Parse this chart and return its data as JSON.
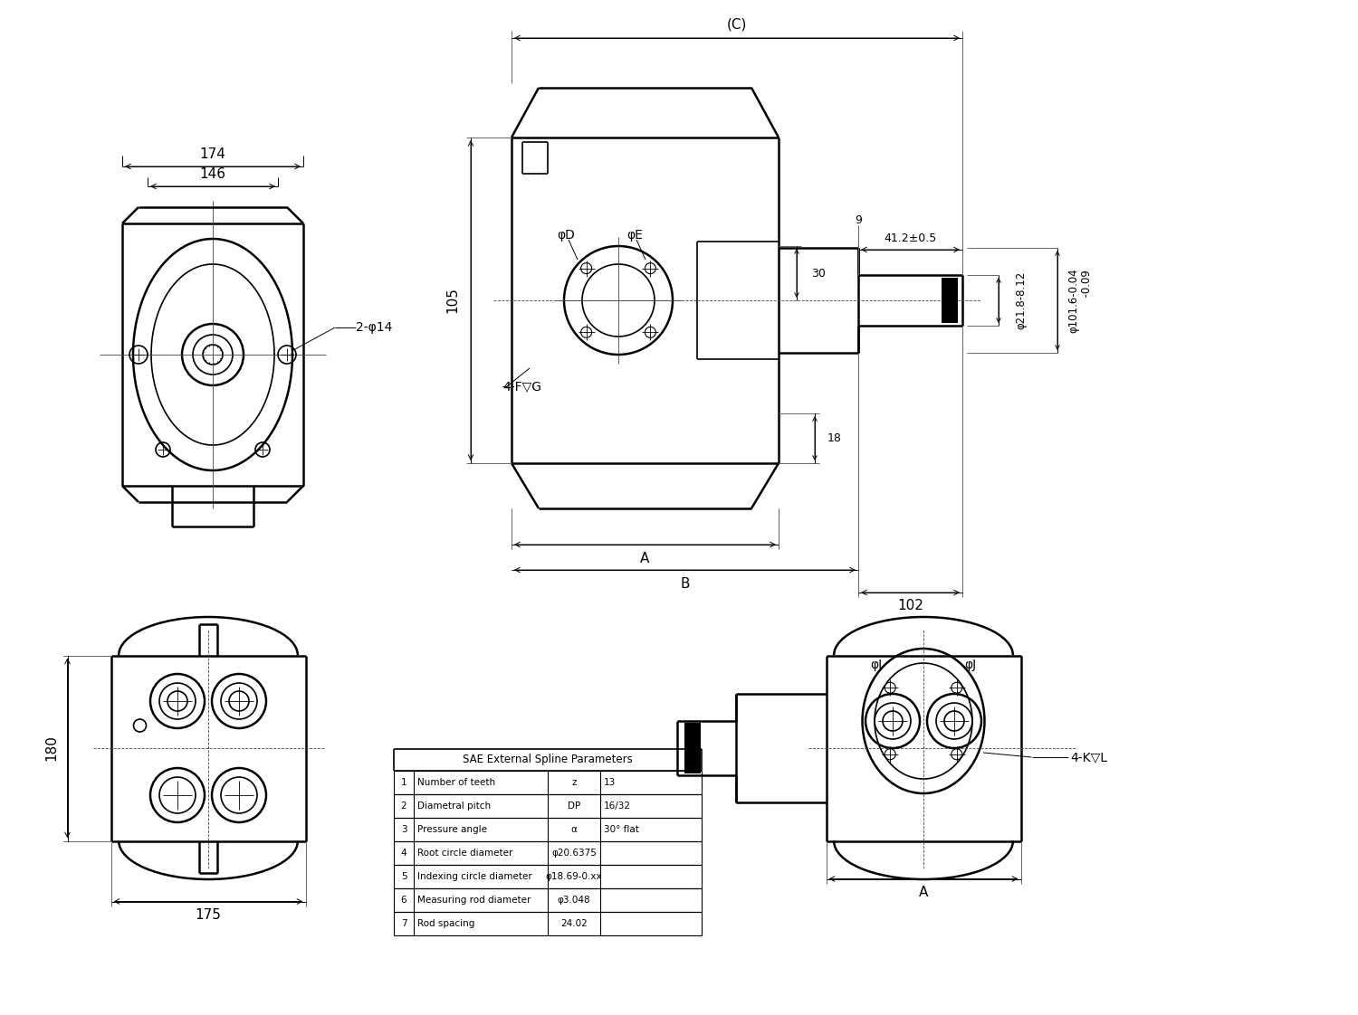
{
  "bg_color": "#ffffff",
  "line_color": "#000000",
  "table_title": "SAE External Spline Parameters",
  "table_rows": [
    [
      "1",
      "Number of teeth",
      "z",
      "13"
    ],
    [
      "2",
      "Diametral pitch",
      "DP",
      "16/32"
    ],
    [
      "3",
      "Pressure angle",
      "α",
      "30° flat"
    ],
    [
      "4",
      "Root circle diameter",
      "φ20.6375",
      ""
    ],
    [
      "5",
      "Indexing circle diameter",
      "φ18.69-0.xx",
      ""
    ],
    [
      "6",
      "Measuring rod diameter",
      "φ3.048",
      ""
    ],
    [
      "7",
      "Rod spacing",
      "24.02",
      ""
    ]
  ],
  "label_174": "174",
  "label_146": "146",
  "label_2phi14": "2-φ14",
  "label_C": "(C)",
  "label_412": "41.2±0.5",
  "label_9": "9",
  "label_phi218": "φ21.8-8.12",
  "label_phi1016": "φ101.6-0.04\n          -0.09",
  "label_30": "30",
  "label_18": "18",
  "label_102": "102",
  "label_105": "105",
  "label_A": "A",
  "label_B": "B",
  "label_phiD": "φD",
  "label_phiE": "φE",
  "label_4FG": "4-F▽G",
  "label_180": "180",
  "label_175": "175",
  "label_phiI": "φI",
  "label_phiJ": "φJ",
  "label_4KL": "4-K▽L"
}
